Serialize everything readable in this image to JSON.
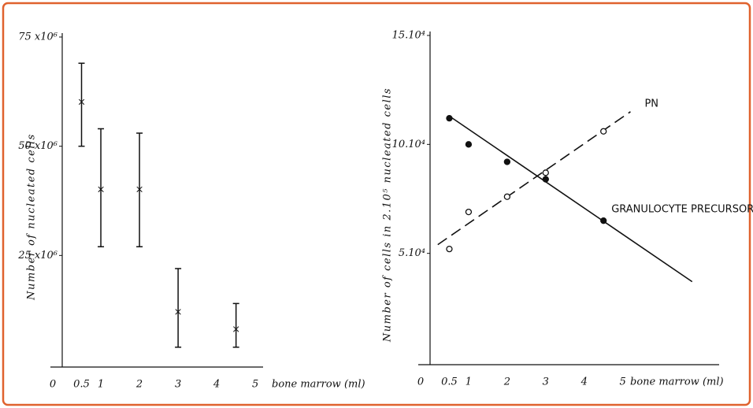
{
  "chart_data": [
    {
      "type": "errorbar",
      "y_label": "Number of nucleated cells",
      "x_label": "bone marrow (ml)",
      "x": [
        0.5,
        1,
        2,
        3,
        4.5
      ],
      "values": [
        60000000,
        40000000,
        40000000,
        12000000,
        8000000
      ],
      "low": [
        50000000,
        27000000,
        27000000,
        4000000,
        4000000
      ],
      "high": [
        69000000,
        54000000,
        53000000,
        22000000,
        14000000
      ],
      "color": "#111111",
      "xlim": [
        0,
        5.2
      ],
      "ylim": [
        0,
        75000000
      ],
      "xticks": [
        0,
        0.5,
        1,
        2,
        3,
        4,
        5
      ],
      "yticks": [
        {
          "value": 25000000,
          "label": "25 x10⁶"
        },
        {
          "value": 50000000,
          "label": "50 x10⁶"
        },
        {
          "value": 75000000,
          "label": "75 x10⁶"
        }
      ]
    },
    {
      "type": "scatter",
      "y_label": "Number of cells in 2.10⁵ nucleated cells",
      "x_label": "bone marrow (ml)",
      "x": [
        0.5,
        1,
        2,
        3,
        4.5
      ],
      "series": [
        {
          "name": "PN",
          "color": "#111111",
          "marker": "open",
          "line": "dashed",
          "values": [
            52000,
            69000,
            76000,
            87000,
            106000
          ],
          "fit": {
            "x": [
              0.2,
              5.2
            ],
            "values": [
              54000,
              115000
            ]
          }
        },
        {
          "name": "GRANULOCYTE PRECURSORS",
          "color": "#111111",
          "marker": "filled",
          "line": "solid",
          "values": [
            112000,
            100000,
            92000,
            84000,
            65000
          ],
          "fit": {
            "x": [
              0.5,
              6.8
            ],
            "values": [
              113000,
              37000
            ]
          }
        }
      ],
      "xlim": [
        0,
        7.5
      ],
      "ylim": [
        0,
        150000
      ],
      "xticks": [
        0,
        0.5,
        1,
        2,
        3,
        4,
        5
      ],
      "yticks": [
        {
          "value": 50000,
          "label": "5.10⁴"
        },
        {
          "value": 100000,
          "label": "10.10⁴"
        },
        {
          "value": 150000,
          "label": "15.10⁴"
        }
      ]
    }
  ]
}
